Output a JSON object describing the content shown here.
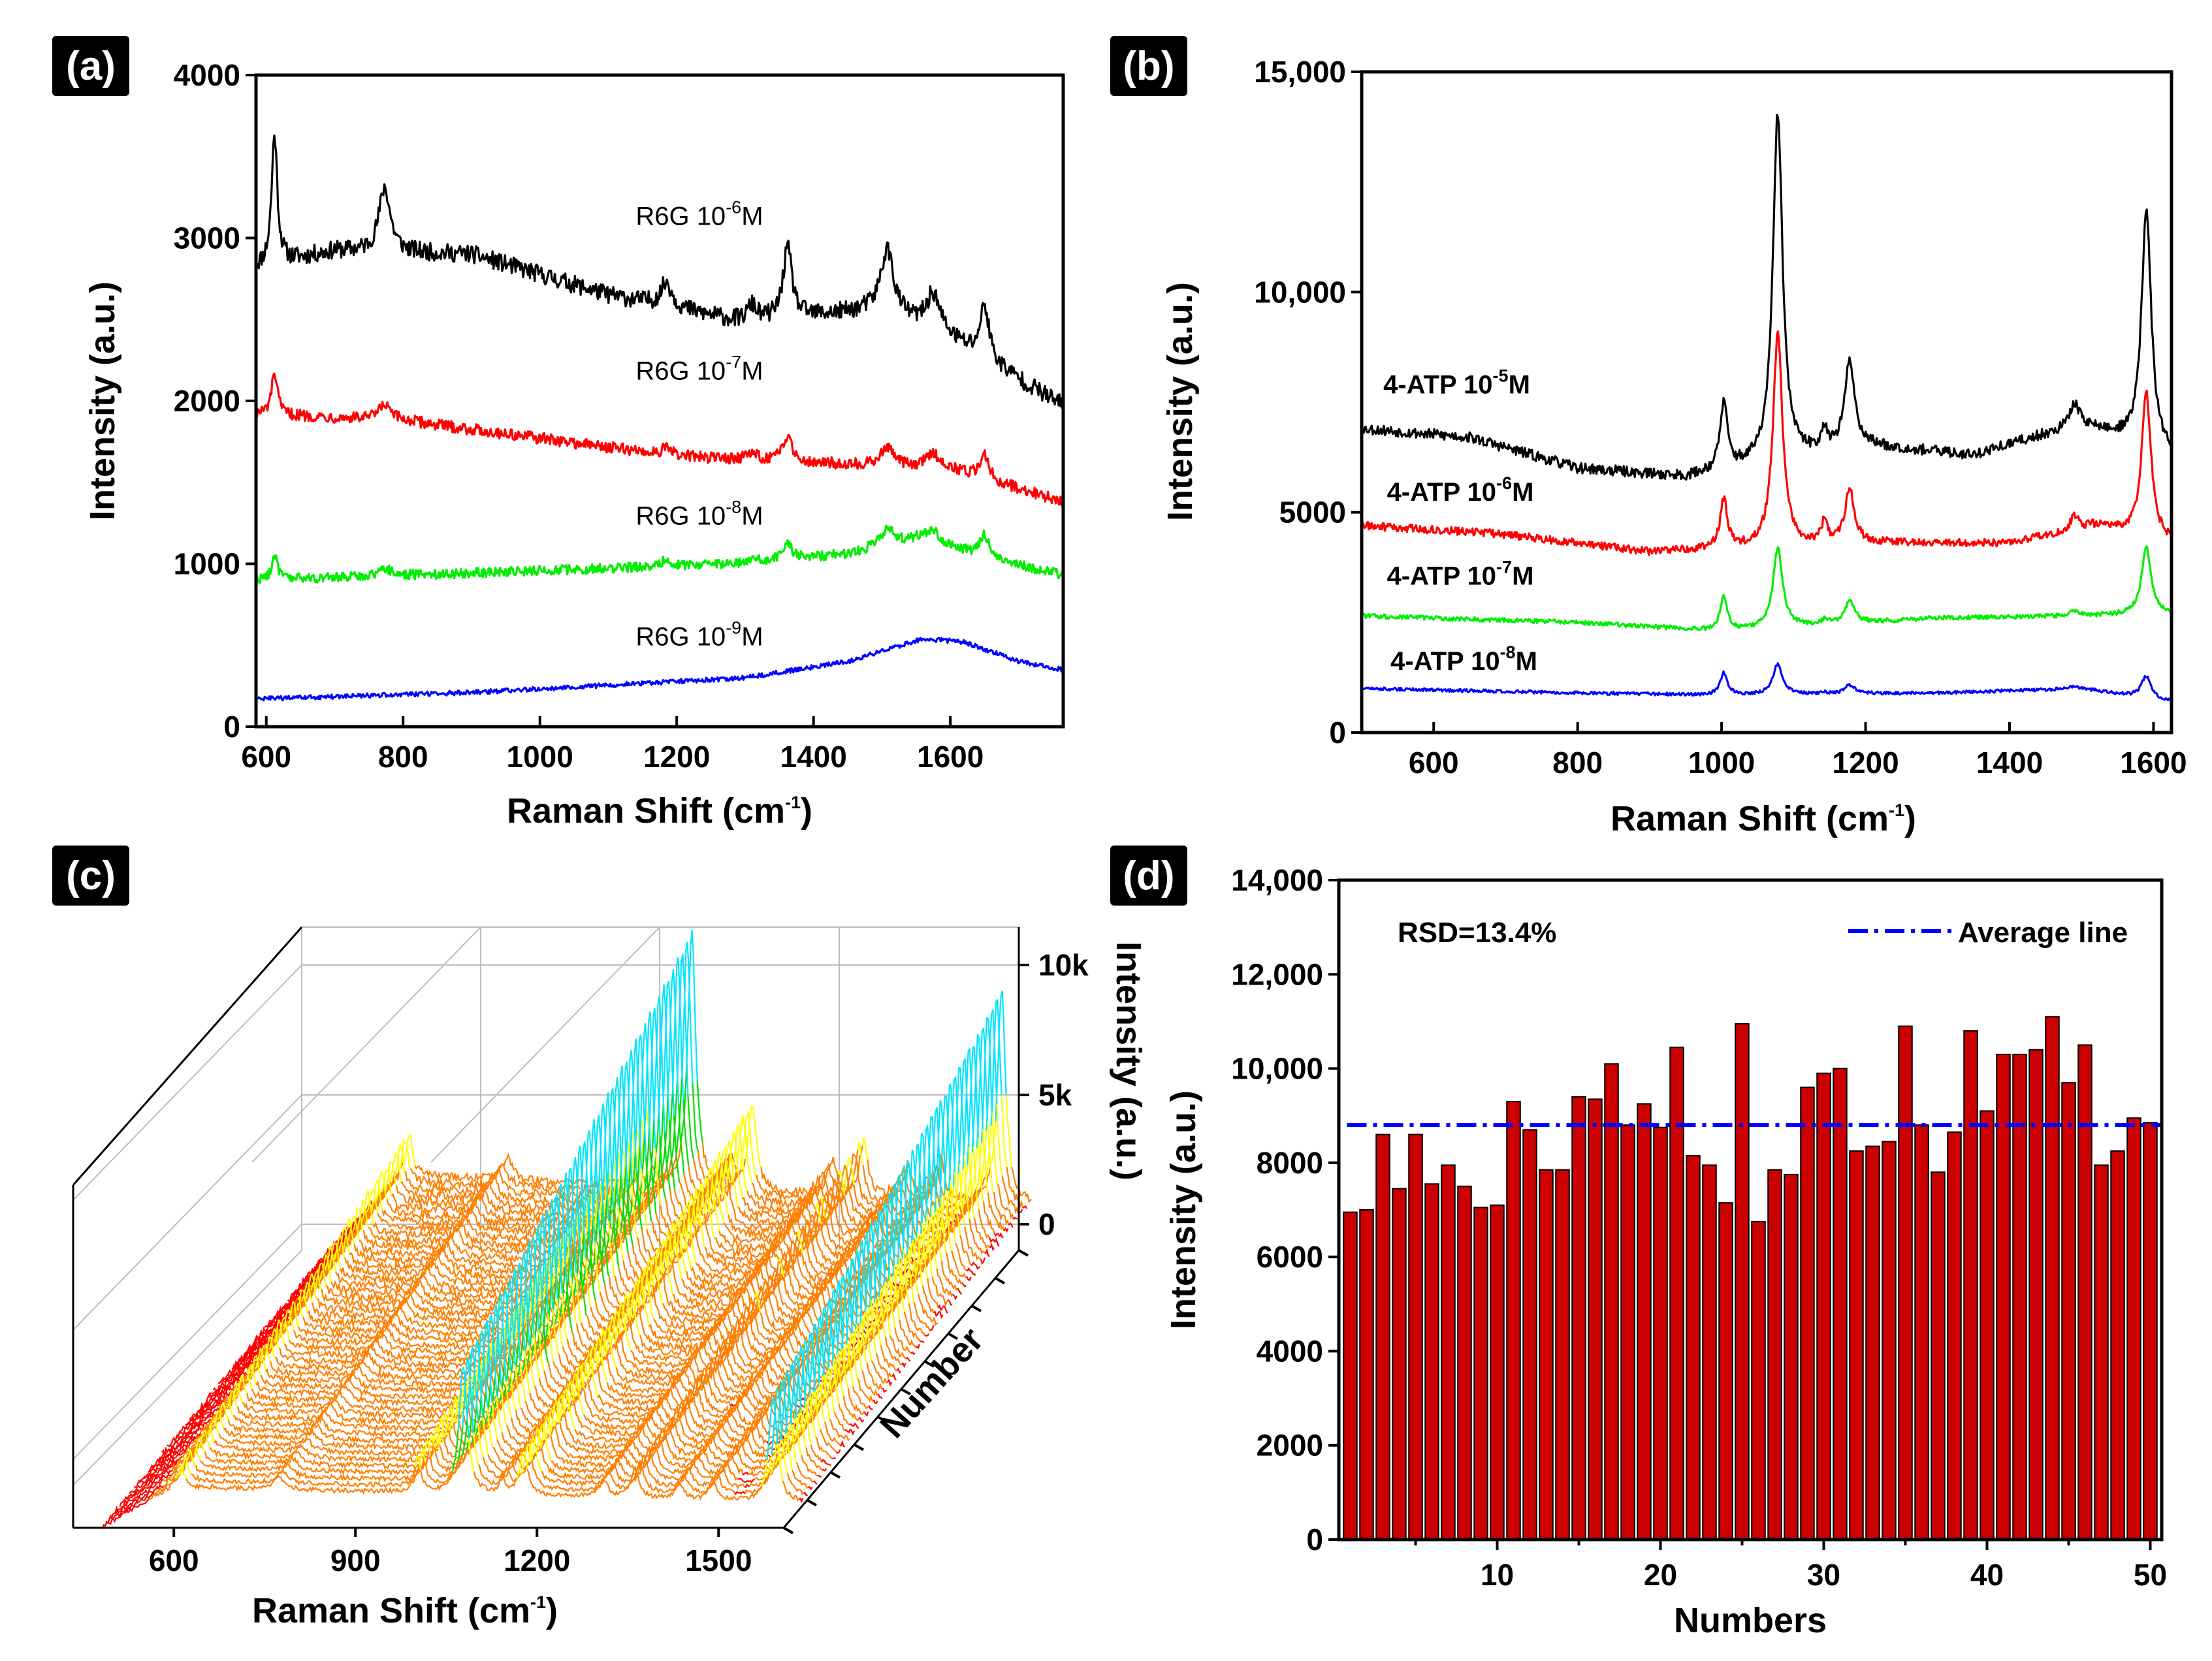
{
  "chart_data": [
    {
      "panel": "(a)",
      "type": "line",
      "xlabel": "Raman Shift (cm",
      "xlabel_sup": "-1",
      "xlabel_end": ")",
      "ylabel": "Intensity (a.u.)",
      "xlim": [
        585,
        1765
      ],
      "ylim": [
        0,
        4000
      ],
      "xticks": [
        600,
        800,
        1000,
        1200,
        1400,
        1600
      ],
      "yticks": [
        0,
        1000,
        2000,
        3000,
        4000
      ],
      "ytick_labels": [
        "0",
        "1000",
        "2000",
        "3000",
        "4000"
      ],
      "peaks": [
        {
          "pos": 612,
          "w": 5
        },
        {
          "pos": 773,
          "w": 10
        },
        {
          "pos": 1185,
          "w": 10
        },
        {
          "pos": 1310,
          "w": 9
        },
        {
          "pos": 1362,
          "w": 8
        },
        {
          "pos": 1508,
          "w": 11
        },
        {
          "pos": 1575,
          "w": 12
        },
        {
          "pos": 1650,
          "w": 8
        }
      ],
      "series": [
        {
          "name": "R6G 10^-6M",
          "label": "R6G 10",
          "sup": "-6",
          "unit": "M",
          "color": "#000000",
          "label_pos": [
            1140,
            3080
          ],
          "baseline": [
            [
              585,
              2820
            ],
            [
              700,
              2920
            ],
            [
              900,
              2900
            ],
            [
              1100,
              2650
            ],
            [
              1300,
              2480
            ],
            [
              1500,
              2560
            ],
            [
              1600,
              2380
            ],
            [
              1765,
              1970
            ]
          ],
          "amps": [
            800,
            400,
            150,
            100,
            430,
            380,
            230,
            330
          ],
          "noise": 55
        },
        {
          "name": "R6G 10^-7M",
          "label": "R6G 10",
          "sup": "-7",
          "unit": "M",
          "color": "#ff0000",
          "label_pos": [
            1140,
            2130
          ],
          "baseline": [
            [
              585,
              1920
            ],
            [
              800,
              1880
            ],
            [
              1200,
              1660
            ],
            [
              1500,
              1600
            ],
            [
              1600,
              1580
            ],
            [
              1765,
              1380
            ]
          ],
          "amps": [
            260,
            90,
            40,
            40,
            160,
            120,
            90,
            150
          ],
          "noise": 35
        },
        {
          "name": "R6G 10^-8M",
          "label": "R6G 10",
          "sup": "-8",
          "unit": "M",
          "color": "#00ee00",
          "label_pos": [
            1140,
            1240
          ],
          "baseline": [
            [
              585,
              900
            ],
            [
              800,
              930
            ],
            [
              1300,
              1000
            ],
            [
              1450,
              1060
            ],
            [
              1560,
              1160
            ],
            [
              1640,
              1050
            ],
            [
              1765,
              930
            ]
          ],
          "amps": [
            150,
            50,
            40,
            30,
            100,
            110,
            60,
            140
          ],
          "noise": 30
        },
        {
          "name": "R6G 10^-9M",
          "label": "R6G 10",
          "sup": "-9",
          "unit": "M",
          "color": "#0000ff",
          "label_pos": [
            1140,
            500
          ],
          "baseline": [
            [
              585,
              170
            ],
            [
              900,
              210
            ],
            [
              1300,
              300
            ],
            [
              1450,
              400
            ],
            [
              1560,
              540
            ],
            [
              1620,
              520
            ],
            [
              1700,
              400
            ],
            [
              1765,
              350
            ]
          ],
          "amps": [
            0,
            0,
            0,
            0,
            0,
            0,
            0,
            0
          ],
          "noise": 14
        }
      ]
    },
    {
      "panel": "(b)",
      "type": "line",
      "xlabel": "Raman Shift (cm",
      "xlabel_sup": "-1",
      "xlabel_end": ")",
      "ylabel": "Intensity (a.u.)",
      "xlim": [
        500,
        1625
      ],
      "ylim": [
        0,
        15000
      ],
      "xticks": [
        600,
        800,
        1000,
        1200,
        1400,
        1600
      ],
      "yticks": [
        0,
        5000,
        10000,
        15000
      ],
      "ytick_labels": [
        "0",
        "5000",
        "10,000",
        "15,000"
      ],
      "peaks": [
        {
          "pos": 1003,
          "w": 6
        },
        {
          "pos": 1078,
          "w": 8
        },
        {
          "pos": 1143,
          "w": 5
        },
        {
          "pos": 1178,
          "w": 8
        },
        {
          "pos": 1490,
          "w": 7
        },
        {
          "pos": 1590,
          "w": 8
        }
      ],
      "series": [
        {
          "name": "4-ATP 10^-5M",
          "label": "4-ATP 10",
          "sup": "-5",
          "unit": "M",
          "color": "#000000",
          "label_pos": [
            530,
            7700
          ],
          "baseline": [
            [
              500,
              6900
            ],
            [
              650,
              6700
            ],
            [
              800,
              6000
            ],
            [
              950,
              5800
            ],
            [
              1200,
              6500
            ],
            [
              1350,
              6300
            ],
            [
              1500,
              7000
            ],
            [
              1625,
              6300
            ]
          ],
          "amps": [
            1500,
            7900,
            500,
            2000,
            500,
            5400
          ],
          "noise": 120
        },
        {
          "name": "4-ATP 10^-6M",
          "label": "4-ATP 10",
          "sup": "-6",
          "unit": "M",
          "color": "#ff0000",
          "label_pos": [
            535,
            5260
          ],
          "baseline": [
            [
              500,
              4700
            ],
            [
              700,
              4500
            ],
            [
              900,
              4100
            ],
            [
              1200,
              4300
            ],
            [
              1400,
              4300
            ],
            [
              1520,
              4700
            ],
            [
              1625,
              4300
            ]
          ],
          "amps": [
            1100,
            4800,
            500,
            1200,
            300,
            3300
          ],
          "noise": 90
        },
        {
          "name": "4-ATP 10^-7M",
          "label": "4-ATP 10",
          "sup": "-7",
          "unit": "M",
          "color": "#00ee00",
          "label_pos": [
            535,
            3360
          ],
          "baseline": [
            [
              500,
              2650
            ],
            [
              800,
              2500
            ],
            [
              1000,
              2300
            ],
            [
              1300,
              2600
            ],
            [
              1500,
              2650
            ],
            [
              1625,
              2700
            ]
          ],
          "amps": [
            800,
            1800,
            100,
            500,
            100,
            1500
          ],
          "noise": 50
        },
        {
          "name": "4-ATP 10^-8M",
          "label": "4-ATP 10",
          "sup": "-8",
          "unit": "M",
          "color": "#0000ff",
          "label_pos": [
            540,
            1420
          ],
          "baseline": [
            [
              500,
              1000
            ],
            [
              800,
              900
            ],
            [
              1000,
              850
            ],
            [
              1300,
              900
            ],
            [
              1500,
              1000
            ],
            [
              1625,
              700
            ]
          ],
          "amps": [
            500,
            700,
            30,
            200,
            50,
            500
          ],
          "noise": 35
        }
      ]
    },
    {
      "panel": "(c)",
      "type": "line",
      "xlabel": "Raman Shift (cm",
      "xlabel_sup": "-1",
      "xlabel_end": ")",
      "ylabel": "Intensity (a.u.)",
      "depth_label": "Number",
      "xticks": [
        600,
        900,
        1200,
        1500
      ],
      "zticks": [
        "0",
        "5k",
        "10k"
      ],
      "num_spectra": 50,
      "colors": [
        "#ff0000",
        "#ff7f00",
        "#ffff00",
        "#00dd00",
        "#00e5ff",
        "#0000ff"
      ]
    },
    {
      "panel": "(d)",
      "type": "bar",
      "xlabel": "Numbers",
      "ylabel": "Intensity (a.u.)",
      "xlim": [
        0.3,
        50.7
      ],
      "ylim": [
        0,
        14000
      ],
      "xticks": [
        10,
        20,
        30,
        40,
        50
      ],
      "yticks": [
        0,
        2000,
        4000,
        6000,
        8000,
        10000,
        12000,
        14000
      ],
      "ytick_labels": [
        "0",
        "2000",
        "4000",
        "6000",
        "8000",
        "10,000",
        "12,000",
        "14,000"
      ],
      "annotation": "RSD=13.4%",
      "legend": "Average line",
      "average": 8800,
      "bar_color": "#cc0000",
      "line_color": "#0000ff",
      "x": [
        1,
        2,
        3,
        4,
        5,
        6,
        7,
        8,
        9,
        10,
        11,
        12,
        13,
        14,
        15,
        16,
        17,
        18,
        19,
        20,
        21,
        22,
        23,
        24,
        25,
        26,
        27,
        28,
        29,
        30,
        31,
        32,
        33,
        34,
        35,
        36,
        37,
        38,
        39,
        40,
        41,
        42,
        43,
        44,
        45,
        46,
        47,
        48,
        49,
        50
      ],
      "values": [
        6950,
        7000,
        8600,
        7450,
        8600,
        7550,
        7950,
        7500,
        7050,
        7100,
        9300,
        8700,
        7850,
        7850,
        9400,
        9350,
        10100,
        8800,
        9250,
        8750,
        10450,
        8150,
        7950,
        7150,
        10950,
        6750,
        7850,
        7750,
        9600,
        9900,
        10000,
        8250,
        8350,
        8450,
        10900,
        8800,
        7800,
        8650,
        10800,
        9100,
        10300,
        10300,
        10400,
        11100,
        9700,
        10500,
        7950,
        8250,
        8950,
        8850
      ]
    }
  ]
}
